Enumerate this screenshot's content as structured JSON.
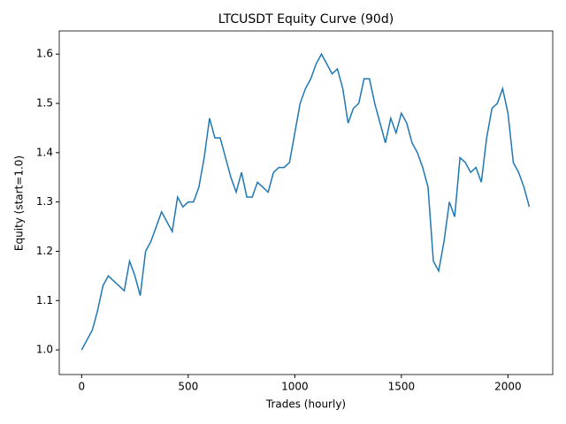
{
  "chart_data": {
    "type": "line",
    "title": "LTCUSDT Equity Curve (90d)",
    "xlabel": "Trades (hourly)",
    "ylabel": "Equity (start=1.0)",
    "x": [
      0,
      25,
      50,
      75,
      100,
      125,
      150,
      175,
      200,
      225,
      250,
      275,
      300,
      325,
      350,
      375,
      400,
      425,
      450,
      475,
      500,
      525,
      550,
      575,
      600,
      625,
      650,
      675,
      700,
      725,
      750,
      775,
      800,
      825,
      850,
      875,
      900,
      925,
      950,
      975,
      1000,
      1025,
      1050,
      1075,
      1100,
      1125,
      1150,
      1175,
      1200,
      1225,
      1250,
      1275,
      1300,
      1325,
      1350,
      1375,
      1400,
      1425,
      1450,
      1475,
      1500,
      1525,
      1550,
      1575,
      1600,
      1625,
      1650,
      1675,
      1700,
      1725,
      1750,
      1775,
      1800,
      1825,
      1850,
      1875,
      1900,
      1925,
      1950,
      1975,
      2000,
      2025,
      2050,
      2075,
      2100
    ],
    "series": [
      {
        "name": "Equity",
        "color": "#1f77b4",
        "values": [
          1.0,
          1.02,
          1.04,
          1.08,
          1.13,
          1.15,
          1.14,
          1.13,
          1.12,
          1.18,
          1.15,
          1.11,
          1.2,
          1.22,
          1.25,
          1.28,
          1.26,
          1.24,
          1.31,
          1.29,
          1.3,
          1.3,
          1.33,
          1.39,
          1.47,
          1.43,
          1.43,
          1.39,
          1.35,
          1.32,
          1.36,
          1.31,
          1.31,
          1.34,
          1.33,
          1.32,
          1.36,
          1.37,
          1.37,
          1.38,
          1.44,
          1.5,
          1.53,
          1.55,
          1.58,
          1.6,
          1.58,
          1.56,
          1.57,
          1.53,
          1.46,
          1.49,
          1.5,
          1.55,
          1.55,
          1.5,
          1.46,
          1.42,
          1.47,
          1.44,
          1.48,
          1.46,
          1.42,
          1.4,
          1.37,
          1.33,
          1.18,
          1.16,
          1.22,
          1.3,
          1.27,
          1.39,
          1.38,
          1.36,
          1.37,
          1.34,
          1.43,
          1.49,
          1.5,
          1.53,
          1.48,
          1.38,
          1.36,
          1.33,
          1.29
        ]
      }
    ],
    "xlim": [
      -105,
      2210
    ],
    "ylim": [
      0.95,
      1.647
    ],
    "xticks": [
      0,
      500,
      1000,
      1500,
      2000
    ],
    "yticks": [
      {
        "value": 1.0,
        "label": "1.0"
      },
      1.1,
      1.2,
      1.3,
      1.4,
      1.5,
      1.6
    ]
  }
}
